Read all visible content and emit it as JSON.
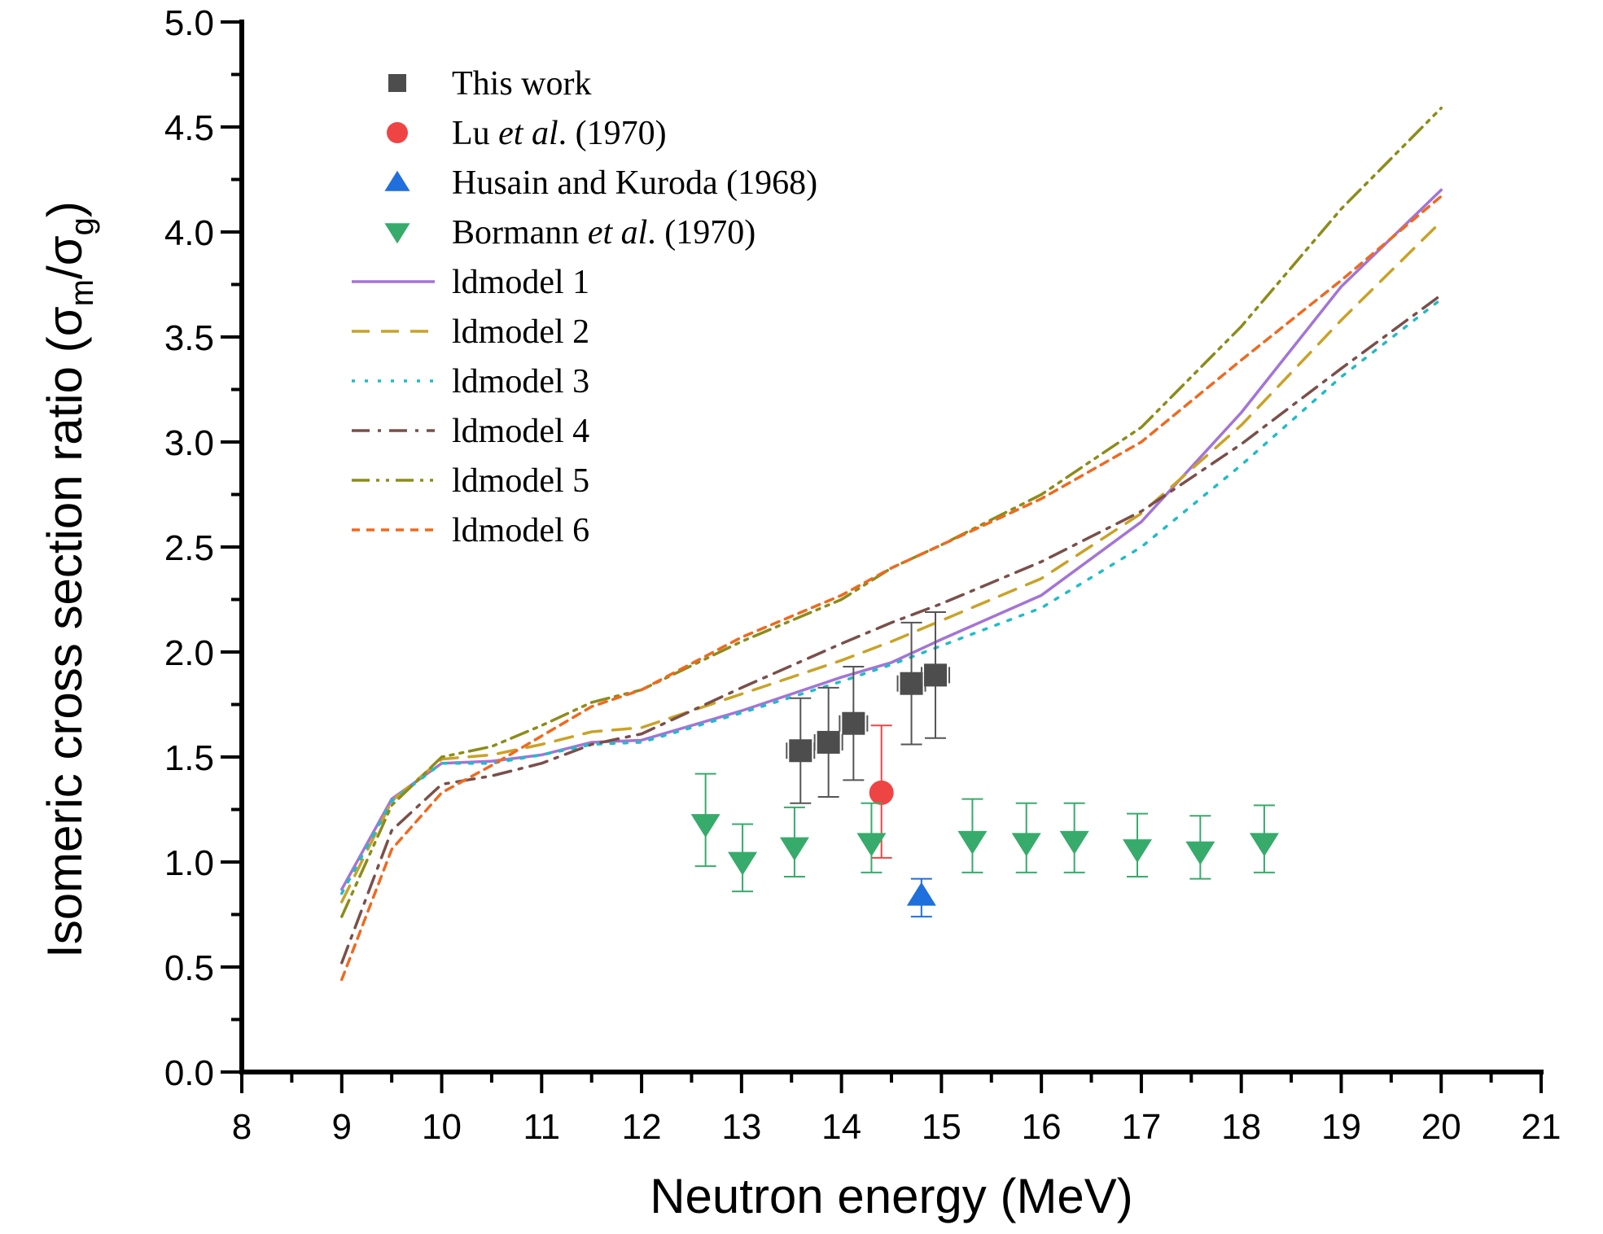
{
  "chart_data": {
    "type": "scatter",
    "title": "",
    "xlabel": "Neutron energy (MeV)",
    "ylabel": {
      "prefix": "Isomeric cross section ratio (",
      "sigma": "σ",
      "sub_m": "m",
      "slash": "/",
      "sub_g": "g",
      "suffix": ")"
    },
    "xlim": [
      8,
      21
    ],
    "ylim": [
      0,
      5.0
    ],
    "xticks": [
      8,
      9,
      10,
      11,
      12,
      13,
      14,
      15,
      16,
      17,
      18,
      19,
      20,
      21
    ],
    "xtick_labels": [
      "8",
      "9",
      "10",
      "11",
      "12",
      "13",
      "14",
      "15",
      "16",
      "17",
      "18",
      "19",
      "20",
      "21"
    ],
    "yticks": [
      0,
      0.5,
      1.0,
      1.5,
      2.0,
      2.5,
      3.0,
      3.5,
      4.0,
      4.5,
      5.0
    ],
    "ytick_labels": [
      "0.0",
      "0.5",
      "1.0",
      "1.5",
      "2.0",
      "2.5",
      "3.0",
      "3.5",
      "4.0",
      "4.5",
      "5.0"
    ],
    "grid": false,
    "legend_position": "top-left",
    "markers": [
      {
        "name": "This work",
        "legend": {
          "main": "This work",
          "italic": "",
          "tail": ""
        },
        "marker": "square",
        "color": "#4d4d4d",
        "points": [
          {
            "x": 13.59,
            "y": 1.53,
            "ylo": 1.28,
            "yhi": 1.78
          },
          {
            "x": 13.87,
            "y": 1.57,
            "ylo": 1.31,
            "yhi": 1.83
          },
          {
            "x": 14.12,
            "y": 1.66,
            "ylo": 1.39,
            "yhi": 1.93
          },
          {
            "x": 14.7,
            "y": 1.85,
            "ylo": 1.56,
            "yhi": 2.14
          },
          {
            "x": 14.94,
            "y": 1.89,
            "ylo": 1.59,
            "yhi": 2.19
          }
        ]
      },
      {
        "name": "Lu et al. (1970)",
        "legend": {
          "main": "Lu ",
          "italic": "et al",
          "tail": ". (1970)"
        },
        "marker": "circle",
        "color": "#ef4444",
        "points": [
          {
            "x": 14.4,
            "y": 1.33,
            "ylo": 1.02,
            "yhi": 1.65
          }
        ]
      },
      {
        "name": "Husain and Kuroda (1968)",
        "legend": {
          "main": "Husain and Kuroda (1968)",
          "italic": "",
          "tail": ""
        },
        "marker": "triangle-up",
        "color": "#1f6fdc",
        "points": [
          {
            "x": 14.8,
            "y": 0.84,
            "ylo": 0.74,
            "yhi": 0.92
          }
        ]
      },
      {
        "name": "Bormann et al. (1970)",
        "legend": {
          "main": "Bormann ",
          "italic": "et al",
          "tail": ". (1970)"
        },
        "marker": "triangle-down",
        "color": "#37ab6b",
        "points": [
          {
            "x": 12.64,
            "y": 1.18,
            "ylo": 0.98,
            "yhi": 1.42
          },
          {
            "x": 13.01,
            "y": 1.0,
            "ylo": 0.86,
            "yhi": 1.18
          },
          {
            "x": 13.53,
            "y": 1.07,
            "ylo": 0.93,
            "yhi": 1.26
          },
          {
            "x": 14.3,
            "y": 1.09,
            "ylo": 0.95,
            "yhi": 1.28
          },
          {
            "x": 15.31,
            "y": 1.1,
            "ylo": 0.95,
            "yhi": 1.3
          },
          {
            "x": 15.85,
            "y": 1.09,
            "ylo": 0.95,
            "yhi": 1.28
          },
          {
            "x": 16.33,
            "y": 1.1,
            "ylo": 0.95,
            "yhi": 1.28
          },
          {
            "x": 16.96,
            "y": 1.06,
            "ylo": 0.93,
            "yhi": 1.23
          },
          {
            "x": 17.59,
            "y": 1.05,
            "ylo": 0.92,
            "yhi": 1.22
          },
          {
            "x": 18.23,
            "y": 1.09,
            "ylo": 0.95,
            "yhi": 1.27
          }
        ]
      }
    ],
    "x": [
      9,
      9.5,
      10,
      10.5,
      11,
      11.5,
      12,
      13,
      14,
      14.5,
      15,
      16,
      17,
      18,
      19,
      20
    ],
    "series": [
      {
        "name": "ldmodel 1",
        "style": "solid",
        "color": "#a374d5",
        "values": [
          0.87,
          1.3,
          1.47,
          1.48,
          1.51,
          1.57,
          1.58,
          1.72,
          1.88,
          1.95,
          2.06,
          2.27,
          2.62,
          3.14,
          3.74,
          4.2
        ]
      },
      {
        "name": "ldmodel 2",
        "style": "dash",
        "color": "#c9a227",
        "values": [
          0.81,
          1.29,
          1.49,
          1.51,
          1.56,
          1.62,
          1.64,
          1.8,
          1.96,
          2.05,
          2.15,
          2.35,
          2.66,
          3.08,
          3.58,
          4.05
        ]
      },
      {
        "name": "ldmodel 3",
        "style": "dot",
        "color": "#1fbcc9",
        "values": [
          0.85,
          1.29,
          1.47,
          1.47,
          1.51,
          1.56,
          1.57,
          1.71,
          1.86,
          1.94,
          2.03,
          2.21,
          2.5,
          2.89,
          3.31,
          3.68
        ]
      },
      {
        "name": "ldmodel 4",
        "style": "dash-dot",
        "color": "#7a4f4a",
        "values": [
          0.52,
          1.15,
          1.37,
          1.41,
          1.47,
          1.56,
          1.61,
          1.83,
          2.04,
          2.14,
          2.23,
          2.43,
          2.67,
          2.99,
          3.35,
          3.7
        ]
      },
      {
        "name": "ldmodel 5",
        "style": "dash-dot-dot",
        "color": "#8c8c1a",
        "values": [
          0.74,
          1.27,
          1.5,
          1.55,
          1.65,
          1.76,
          1.82,
          2.05,
          2.25,
          2.4,
          2.51,
          2.75,
          3.07,
          3.55,
          4.11,
          4.59
        ]
      },
      {
        "name": "ldmodel 6",
        "style": "short-dash",
        "color": "#ee6a1f",
        "values": [
          0.44,
          1.06,
          1.33,
          1.46,
          1.6,
          1.74,
          1.82,
          2.07,
          2.27,
          2.4,
          2.51,
          2.73,
          3.0,
          3.39,
          3.77,
          4.17
        ]
      }
    ]
  }
}
